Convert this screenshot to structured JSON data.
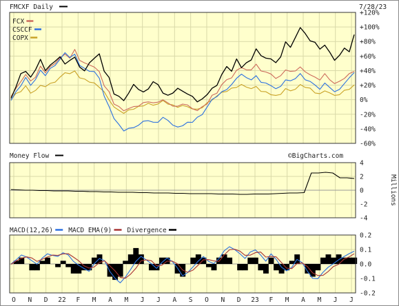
{
  "header": {
    "title": "FMCXF Daily",
    "date": "7/28/23",
    "watermark": "©BigCharts.com"
  },
  "colors": {
    "panel_bg": "#ffffcc",
    "grid": "#d9d9a8",
    "main": "#000000",
    "fcx": "#cc6a5c",
    "csccf": "#2a6fe0",
    "copx": "#c9a227",
    "macd": "#2a6fe0",
    "macd_ema": "#a83232",
    "divergence": "#000000"
  },
  "x_axis": {
    "labels": [
      "O",
      "N",
      "D",
      "22",
      "F",
      "M",
      "A",
      "M",
      "J",
      "J",
      "A",
      "S",
      "O",
      "N",
      "D",
      "23",
      "F",
      "M",
      "A",
      "M",
      "J",
      "J"
    ]
  },
  "chart_data": [
    {
      "panel": "price",
      "type": "line",
      "title": "FMCXF Daily",
      "ylabel": "",
      "yticks": [
        "+120%",
        "+100%",
        "+80%",
        "+60%",
        "+40%",
        "+20%",
        "0%",
        "-20%",
        "-40%",
        "-60%"
      ],
      "ylim": [
        -60,
        120
      ],
      "series": [
        {
          "name": "FMCXF",
          "color": "#000000",
          "values": [
            2,
            18,
            35,
            40,
            30,
            42,
            55,
            40,
            48,
            52,
            60,
            48,
            55,
            58,
            45,
            40,
            50,
            58,
            62,
            40,
            30,
            8,
            5,
            -2,
            10,
            20,
            15,
            10,
            15,
            25,
            20,
            10,
            5,
            10,
            15,
            12,
            8,
            4,
            -2,
            0,
            8,
            15,
            20,
            35,
            45,
            40,
            55,
            45,
            50,
            55,
            70,
            60,
            58,
            55,
            52,
            58,
            80,
            72,
            85,
            100,
            90,
            82,
            78,
            70,
            75,
            65,
            55,
            60,
            72,
            65,
            90
          ]
        },
        {
          "name": "FCX",
          "color": "#cc6a5c",
          "values": [
            5,
            15,
            25,
            35,
            25,
            32,
            45,
            38,
            45,
            50,
            58,
            62,
            58,
            68,
            55,
            50,
            48,
            45,
            38,
            20,
            10,
            -5,
            -10,
            -15,
            -12,
            -10,
            -8,
            -5,
            -2,
            -5,
            -3,
            0,
            -5,
            -8,
            -10,
            -5,
            -8,
            -12,
            -15,
            -10,
            -5,
            5,
            10,
            20,
            28,
            30,
            40,
            45,
            40,
            42,
            48,
            40,
            38,
            35,
            30,
            32,
            42,
            38,
            40,
            45,
            38,
            35,
            30,
            28,
            35,
            28,
            22,
            25,
            30,
            35,
            40
          ]
        },
        {
          "name": "CSCCF",
          "color": "#2a6fe0",
          "values": [
            0,
            10,
            20,
            30,
            20,
            28,
            40,
            34,
            42,
            48,
            55,
            65,
            58,
            62,
            48,
            42,
            40,
            38,
            30,
            5,
            -10,
            -25,
            -35,
            -42,
            -40,
            -38,
            -35,
            -30,
            -28,
            -32,
            -30,
            -25,
            -28,
            -35,
            -38,
            -35,
            -32,
            -30,
            -25,
            -20,
            -10,
            0,
            5,
            10,
            15,
            20,
            30,
            35,
            30,
            28,
            32,
            25,
            22,
            20,
            15,
            18,
            28,
            25,
            30,
            35,
            28,
            25,
            20,
            15,
            22,
            18,
            10,
            15,
            22,
            30,
            38
          ]
        },
        {
          "name": "COPX",
          "color": "#c9a227",
          "values": [
            0,
            8,
            12,
            18,
            10,
            12,
            20,
            18,
            22,
            25,
            30,
            38,
            35,
            40,
            30,
            28,
            25,
            22,
            18,
            10,
            0,
            -10,
            -15,
            -18,
            -15,
            -12,
            -10,
            -8,
            -5,
            -8,
            -5,
            -2,
            -5,
            -8,
            -10,
            -8,
            -10,
            -12,
            -14,
            -10,
            -5,
            0,
            5,
            10,
            12,
            15,
            18,
            20,
            18,
            15,
            18,
            12,
            10,
            8,
            5,
            8,
            15,
            12,
            15,
            20,
            18,
            15,
            10,
            8,
            12,
            10,
            5,
            8,
            12,
            15,
            20
          ]
        }
      ]
    },
    {
      "panel": "money_flow",
      "type": "line",
      "title": "Money Flow",
      "ylabel": "Millions",
      "yticks": [
        "4",
        "2",
        "0",
        "-2",
        "-4"
      ],
      "ylim": [
        -4,
        4
      ],
      "series": [
        {
          "name": "Money Flow",
          "color": "#000000",
          "values": [
            0.1,
            0.05,
            0.0,
            0.0,
            -0.05,
            -0.05,
            -0.1,
            -0.1,
            -0.1,
            -0.15,
            -0.15,
            -0.2,
            -0.2,
            -0.25,
            -0.25,
            -0.3,
            -0.3,
            -0.3,
            -0.35,
            -0.35,
            -0.4,
            -0.4,
            -0.4,
            -0.45,
            -0.45,
            -0.5,
            -0.5,
            -0.5,
            -0.5,
            -0.55,
            -0.55,
            -0.55,
            -0.6,
            -0.6,
            -0.55,
            -0.55,
            -0.55,
            -0.5,
            -0.45,
            -0.4,
            -0.4,
            -0.35,
            2.5,
            2.5,
            2.6,
            2.5,
            1.8,
            1.8,
            1.7
          ]
        }
      ]
    },
    {
      "panel": "macd",
      "type": "line",
      "title": "MACD(12,26)",
      "legend": [
        "MACD(12,26)",
        "MACD EMA(9)",
        "Divergence"
      ],
      "yticks": [
        "0.2",
        "0.1",
        "0.0",
        "-0.1",
        "-0.2"
      ],
      "ylim": [
        -0.2,
        0.2
      ],
      "series": [
        {
          "name": "MACD(12,26)",
          "color": "#2a6fe0",
          "values": [
            0.0,
            0.03,
            0.06,
            0.05,
            0.02,
            0.0,
            0.04,
            0.07,
            0.06,
            0.05,
            0.08,
            0.06,
            0.02,
            -0.01,
            -0.03,
            -0.05,
            0.0,
            0.04,
            0.02,
            -0.05,
            -0.1,
            -0.13,
            -0.09,
            -0.04,
            0.02,
            0.05,
            0.03,
            0.0,
            -0.03,
            0.01,
            0.04,
            0.02,
            -0.03,
            -0.08,
            -0.06,
            -0.02,
            0.02,
            0.05,
            0.02,
            0.0,
            0.04,
            0.09,
            0.12,
            0.1,
            0.07,
            0.04,
            0.08,
            0.1,
            0.06,
            0.02,
            0.07,
            0.03,
            -0.02,
            -0.05,
            -0.02,
            0.03,
            0.01,
            -0.05,
            -0.1,
            -0.1,
            -0.06,
            -0.02,
            0.0,
            0.03,
            0.05,
            0.07,
            0.09
          ]
        },
        {
          "name": "MACD EMA(9)",
          "color": "#a83232",
          "values": [
            0.0,
            0.02,
            0.04,
            0.05,
            0.04,
            0.02,
            0.03,
            0.05,
            0.06,
            0.06,
            0.07,
            0.07,
            0.05,
            0.02,
            -0.01,
            -0.03,
            -0.02,
            0.01,
            0.02,
            -0.01,
            -0.05,
            -0.09,
            -0.1,
            -0.07,
            -0.03,
            0.02,
            0.03,
            0.02,
            -0.01,
            -0.01,
            0.02,
            0.02,
            0.0,
            -0.04,
            -0.06,
            -0.04,
            -0.01,
            0.03,
            0.03,
            0.02,
            0.02,
            0.06,
            0.1,
            0.1,
            0.09,
            0.06,
            0.06,
            0.08,
            0.08,
            0.05,
            0.05,
            0.05,
            0.01,
            -0.03,
            -0.03,
            0.0,
            0.01,
            -0.02,
            -0.06,
            -0.08,
            -0.08,
            -0.05,
            -0.02,
            0.0,
            0.03,
            0.05,
            0.07
          ]
        }
      ]
    }
  ]
}
